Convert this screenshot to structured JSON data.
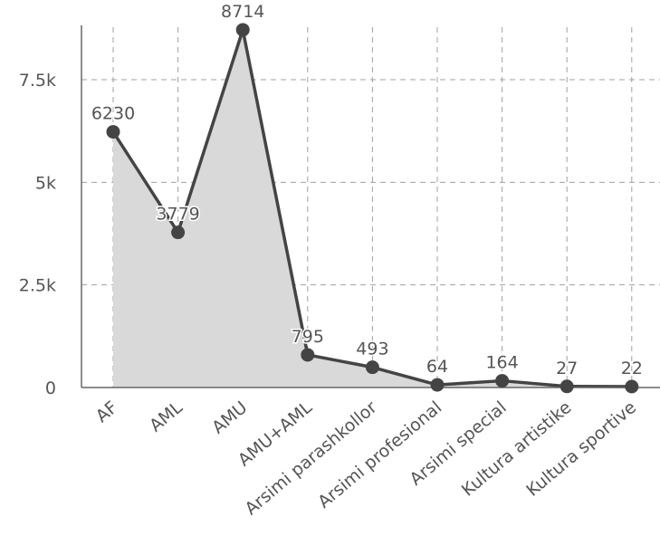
{
  "chart_data": {
    "type": "area",
    "categories": [
      "AF",
      "AML",
      "AMU",
      "AMU+AML",
      "Arsimi parashkollor",
      "Arsimi profesional",
      "Arsimi special",
      "Kultura artistike",
      "Kultura sportive"
    ],
    "values": [
      6230,
      3779,
      8714,
      795,
      493,
      64,
      164,
      27,
      22
    ],
    "data_labels": [
      "6230",
      "3779",
      "8714",
      "795",
      "493",
      "64",
      "164",
      "27",
      "22"
    ],
    "ylim": [
      0,
      9000
    ],
    "yticks": [
      0,
      2500,
      5000,
      7500
    ],
    "ytick_labels": [
      "0",
      "2.5k",
      "5k",
      "7.5k"
    ],
    "grid": true,
    "legend": "none",
    "colors": {
      "line": "#444444",
      "fill": "#d9d9d9",
      "marker": "#444444",
      "grid": "#a0a0a0"
    }
  }
}
